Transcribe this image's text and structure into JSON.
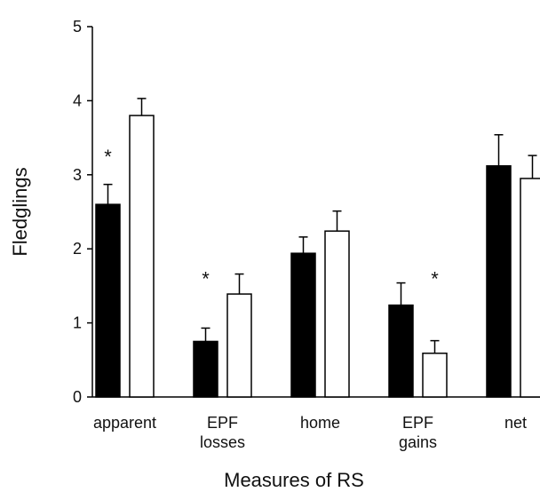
{
  "chart_data": {
    "type": "bar",
    "xlabel": "Measures of RS",
    "ylabel": "Fledglings",
    "ylim": [
      0,
      5
    ],
    "yticks": [
      0,
      1,
      2,
      3,
      4,
      5
    ],
    "grid": false,
    "legend": "none",
    "categories": [
      [
        "apparent"
      ],
      [
        "EPF",
        "losses"
      ],
      [
        "home"
      ],
      [
        "EPF",
        "gains"
      ],
      [
        "net"
      ]
    ],
    "series": [
      {
        "fill": "#000000",
        "values": [
          2.6,
          0.75,
          1.94,
          1.24,
          3.12
        ],
        "errors": [
          0.27,
          0.18,
          0.22,
          0.3,
          0.42
        ]
      },
      {
        "fill": "#ffffff",
        "values": [
          3.8,
          1.39,
          2.24,
          0.59,
          2.95
        ],
        "errors": [
          0.23,
          0.27,
          0.27,
          0.17,
          0.31
        ]
      }
    ],
    "annotations": [
      {
        "text": "*",
        "category": 0,
        "series": 0,
        "y": 3.3
      },
      {
        "text": "*",
        "category": 1,
        "series": 0,
        "y": 1.65
      },
      {
        "text": "*",
        "category": 3,
        "series": 1,
        "y": 1.65
      }
    ]
  }
}
